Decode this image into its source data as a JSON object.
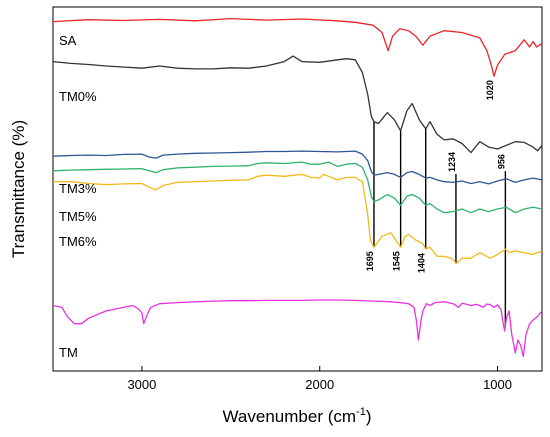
{
  "chart_data": {
    "type": "line",
    "xlabel": "Wavenumber (cm",
    "xlabel_sup": "-1",
    "xlabel_end": ")",
    "ylabel": "Transmittance (%)",
    "x_reversed": true,
    "xlim": [
      3500,
      750
    ],
    "xticks": [
      "3000",
      "2000",
      "1000"
    ],
    "xtick_values": [
      3000,
      2000,
      1000
    ],
    "yticks_shown": false,
    "grid": false,
    "series": [
      {
        "name": "SA",
        "color": "#e8262a",
        "x": [
          3500,
          3300,
          3100,
          2900,
          2700,
          2500,
          2300,
          2100,
          1900,
          1800,
          1700,
          1650,
          1615,
          1590,
          1550,
          1500,
          1460,
          1420,
          1380,
          1300,
          1200,
          1100,
          1060,
          1035,
          1020,
          1000,
          960,
          900,
          850,
          820,
          800,
          780,
          750
        ],
        "y": [
          96,
          96.5,
          96.3,
          96.6,
          96.2,
          96.8,
          96.4,
          96.7,
          96.2,
          95.8,
          95.0,
          93.0,
          88.0,
          92.0,
          94.0,
          93.5,
          92.0,
          89.5,
          92.0,
          93.5,
          93.0,
          91.5,
          88.0,
          84.0,
          81.0,
          84.0,
          87.0,
          88.0,
          91.0,
          89.0,
          90.5,
          89.0,
          90.0
        ]
      },
      {
        "name": "TM0%",
        "color": "#333333",
        "x": [
          3500,
          3400,
          3300,
          3200,
          3100,
          3000,
          2900,
          2800,
          2700,
          2600,
          2500,
          2400,
          2300,
          2200,
          2150,
          2100,
          2000,
          1900,
          1850,
          1800,
          1760,
          1730,
          1710,
          1695,
          1670,
          1620,
          1580,
          1545,
          1510,
          1480,
          1440,
          1404,
          1380,
          1340,
          1300,
          1250,
          1200,
          1180,
          1150,
          1100,
          1050,
          1000,
          950,
          900,
          850,
          800,
          775,
          750
        ],
        "y": [
          85,
          84.5,
          84.2,
          83.8,
          83.5,
          83.2,
          83.8,
          83.2,
          83.0,
          83.0,
          83.3,
          83.2,
          83.8,
          85.0,
          86.5,
          85.0,
          84.8,
          85.5,
          85.8,
          85.5,
          82.0,
          76.0,
          70.0,
          68.5,
          68.0,
          71.0,
          69.0,
          66.0,
          71.5,
          73.5,
          69.0,
          66.5,
          68.5,
          65.0,
          63.5,
          63.8,
          62.5,
          61.5,
          60.0,
          63.0,
          61.5,
          61.0,
          62.0,
          63.0,
          62.8,
          61.5,
          60.5,
          62.0
        ]
      },
      {
        "name": "TM3%",
        "color": "#2f5596",
        "x": [
          3500,
          3400,
          3300,
          3200,
          3100,
          3000,
          2960,
          2920,
          2880,
          2800,
          2700,
          2600,
          2500,
          2400,
          2300,
          2200,
          2100,
          2000,
          1900,
          1800,
          1760,
          1730,
          1710,
          1695,
          1670,
          1620,
          1580,
          1545,
          1510,
          1480,
          1440,
          1404,
          1380,
          1340,
          1300,
          1250,
          1200,
          1150,
          1100,
          1050,
          1000,
          950,
          900,
          850,
          800,
          750
        ],
        "y": [
          59,
          59.2,
          59.3,
          59.2,
          59.5,
          59.6,
          58.8,
          58.5,
          59.3,
          59.6,
          59.8,
          59.9,
          60.0,
          60.1,
          60.3,
          60.3,
          60.4,
          60.3,
          60.2,
          60.4,
          59.6,
          57.8,
          54.8,
          53.8,
          54.0,
          54.5,
          54.0,
          53.2,
          54.5,
          54.8,
          54.0,
          53.0,
          53.2,
          52.5,
          52.0,
          51.8,
          52.2,
          51.5,
          52.0,
          51.4,
          52.2,
          52.8,
          51.8,
          52.5,
          53.0,
          52.5
        ]
      },
      {
        "name": "TM5%",
        "color": "#2fb26c",
        "x": [
          3500,
          3400,
          3300,
          3200,
          3100,
          3000,
          2960,
          2920,
          2880,
          2800,
          2700,
          2600,
          2500,
          2400,
          2350,
          2300,
          2200,
          2100,
          2050,
          2000,
          1950,
          1900,
          1850,
          1800,
          1760,
          1730,
          1710,
          1695,
          1670,
          1620,
          1580,
          1545,
          1510,
          1480,
          1440,
          1404,
          1380,
          1340,
          1300,
          1250,
          1200,
          1150,
          1100,
          1050,
          1000,
          950,
          900,
          850,
          800,
          750
        ],
        "y": [
          55,
          55.2,
          55.3,
          55.4,
          55.5,
          55.6,
          55.0,
          54.5,
          55.3,
          55.8,
          56.0,
          56.2,
          56.3,
          56.4,
          57.0,
          57.2,
          57.0,
          57.4,
          56.8,
          56.8,
          57.4,
          56.2,
          56.8,
          57.0,
          56.0,
          52.5,
          48.0,
          46.5,
          47.0,
          48.5,
          47.5,
          45.5,
          48.0,
          48.5,
          47.5,
          45.5,
          46.0,
          44.5,
          43.5,
          43.8,
          44.5,
          43.5,
          44.5,
          43.8,
          44.5,
          45.0,
          43.5,
          44.5,
          45.0,
          44.5
        ]
      },
      {
        "name": "TM6%",
        "color": "#f3b81c",
        "x": [
          3500,
          3400,
          3300,
          3200,
          3100,
          3000,
          2960,
          2920,
          2880,
          2800,
          2700,
          2600,
          2500,
          2400,
          2350,
          2300,
          2200,
          2100,
          2050,
          2000,
          1980,
          1950,
          1900,
          1850,
          1800,
          1760,
          1730,
          1715,
          1700,
          1695,
          1680,
          1650,
          1600,
          1580,
          1545,
          1520,
          1500,
          1460,
          1420,
          1404,
          1380,
          1340,
          1300,
          1260,
          1240,
          1234,
          1220,
          1200,
          1150,
          1100,
          1060,
          1040,
          1000,
          956,
          930,
          900,
          850,
          800,
          750
        ],
        "y": [
          52,
          52.0,
          51.5,
          51.2,
          51.4,
          51.5,
          50.5,
          49.8,
          51.0,
          51.8,
          52.0,
          52.2,
          52.4,
          52.5,
          53.5,
          53.8,
          53.5,
          54.0,
          53.2,
          53.0,
          54.0,
          53.5,
          52.5,
          53.2,
          53.2,
          52.0,
          43.0,
          36.0,
          34.5,
          34.0,
          35.0,
          37.0,
          38.0,
          36.5,
          34.0,
          37.0,
          37.5,
          36.0,
          35.0,
          33.5,
          34.0,
          31.5,
          31.5,
          31.0,
          30.0,
          29.5,
          30.0,
          31.0,
          31.0,
          32.5,
          31.5,
          31.0,
          32.0,
          33.5,
          32.5,
          33.0,
          32.5,
          32.0,
          33.0
        ]
      },
      {
        "name": "TM",
        "color": "#e832e0",
        "x": [
          3500,
          3450,
          3420,
          3380,
          3340,
          3300,
          3200,
          3100,
          3050,
          3020,
          3000,
          2990,
          2970,
          2950,
          2900,
          2800,
          2700,
          2600,
          2500,
          2400,
          2300,
          2200,
          2100,
          2000,
          1900,
          1800,
          1700,
          1600,
          1550,
          1500,
          1470,
          1455,
          1445,
          1430,
          1420,
          1400,
          1380,
          1350,
          1300,
          1250,
          1220,
          1200,
          1180,
          1150,
          1120,
          1100,
          1080,
          1060,
          1040,
          1020,
          1000,
          980,
          970,
          960,
          950,
          935,
          920,
          900,
          885,
          870,
          855,
          840,
          820,
          800,
          775,
          750
        ],
        "y": [
          18,
          17.5,
          15.0,
          13.0,
          13.0,
          14.5,
          16.5,
          17.5,
          18.0,
          17.0,
          16.0,
          13.0,
          15.5,
          17.5,
          18.5,
          18.8,
          19.0,
          19.2,
          19.3,
          19.3,
          19.4,
          19.4,
          19.4,
          19.5,
          19.5,
          19.4,
          19.2,
          19.0,
          18.8,
          18.5,
          17.5,
          13.5,
          8.5,
          14.0,
          16.5,
          18.5,
          18.0,
          18.8,
          19.0,
          18.5,
          17.5,
          18.6,
          18.4,
          18.0,
          18.3,
          18.0,
          17.5,
          18.4,
          18.2,
          17.5,
          18.2,
          16.8,
          13.5,
          11.0,
          14.5,
          16.5,
          10.0,
          5.0,
          8.5,
          7.0,
          4.0,
          10.0,
          13.0,
          14.0,
          15.0,
          16.5
        ]
      }
    ],
    "series_labels": [
      {
        "text": "SA"
      },
      {
        "text": "TM0%"
      },
      {
        "text": "TM3%"
      },
      {
        "text": "TM5%"
      },
      {
        "text": "TM6%"
      },
      {
        "text": "TM"
      }
    ],
    "peak_annotations": [
      {
        "label": "1020",
        "x": 1020
      },
      {
        "label": "1695",
        "x": 1695
      },
      {
        "label": "1545",
        "x": 1545
      },
      {
        "label": "1404",
        "x": 1404
      },
      {
        "label": "1234",
        "x": 1234
      },
      {
        "label": "956",
        "x": 956
      }
    ]
  }
}
